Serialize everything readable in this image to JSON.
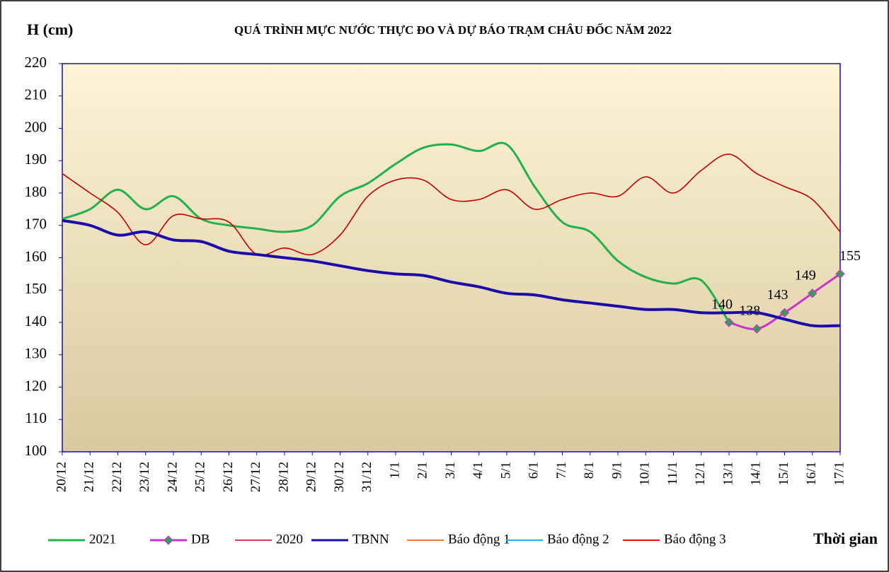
{
  "chart_data": {
    "type": "line",
    "title": "QUÁ TRÌNH MỰC NƯỚC THỰC ĐO VÀ DỰ BÁO TRẠM CHÂU ĐỐC NĂM 2022",
    "y_label": "H (cm)",
    "x_label": "Thời gian",
    "categories": [
      "20/12",
      "21/12",
      "22/12",
      "23/12",
      "24/12",
      "25/12",
      "26/12",
      "27/12",
      "28/12",
      "29/12",
      "30/12",
      "31/12",
      "1/1",
      "2/1",
      "3/1",
      "4/1",
      "5/1",
      "6/1",
      "7/1",
      "8/1",
      "9/1",
      "10/1",
      "11/1",
      "12/1",
      "13/1",
      "14/1",
      "15/1",
      "16/1",
      "17/1"
    ],
    "ylim": [
      100,
      220
    ],
    "yticks": [
      100,
      110,
      120,
      130,
      140,
      150,
      160,
      170,
      180,
      190,
      200,
      210,
      220
    ],
    "series": [
      {
        "name": "2021",
        "color": "#22b14c",
        "width": 3,
        "values": [
          172,
          175,
          181,
          175,
          179,
          172,
          170,
          169,
          168,
          170,
          179,
          183,
          189,
          194,
          195,
          193,
          195,
          182,
          171,
          168,
          159,
          154,
          152,
          153,
          140,
          null,
          null,
          null,
          null
        ]
      },
      {
        "name": "DB",
        "color": "#cc33cc",
        "marker_color": "#3a9a5a",
        "width": 3,
        "data_labels": true,
        "values": [
          null,
          null,
          null,
          null,
          null,
          null,
          null,
          null,
          null,
          null,
          null,
          null,
          null,
          null,
          null,
          null,
          null,
          null,
          null,
          null,
          null,
          null,
          null,
          null,
          140,
          138,
          143,
          149,
          155
        ]
      },
      {
        "name": "2020",
        "color": "#c00000",
        "width": 1.6,
        "values": [
          186,
          180,
          174,
          164,
          173,
          172,
          171,
          161,
          163,
          161,
          167,
          179,
          184,
          184,
          178,
          178,
          181,
          175,
          178,
          180,
          179,
          185,
          180,
          187,
          192,
          186,
          182,
          178,
          168
        ]
      },
      {
        "name": "TBNN",
        "color": "#1a0ca8",
        "width": 4,
        "values": [
          171.5,
          170,
          167,
          168,
          165.5,
          165,
          162,
          161,
          160,
          159,
          157.5,
          156,
          155,
          154.5,
          152.5,
          151,
          149,
          148.5,
          147,
          146,
          145,
          144,
          144,
          143,
          143,
          143,
          141,
          139,
          139
        ]
      },
      {
        "name": "Báo động 1",
        "color": "#f08030",
        "width": 2,
        "values": [
          null,
          null,
          null,
          null,
          null,
          null,
          null,
          null,
          null,
          null,
          null,
          null,
          null,
          null,
          null,
          null,
          null,
          null,
          null,
          null,
          null,
          null,
          null,
          null,
          null,
          null,
          null,
          null,
          null
        ]
      },
      {
        "name": "Báo động 2",
        "color": "#20b0f0",
        "width": 2,
        "values": [
          null,
          null,
          null,
          null,
          null,
          null,
          null,
          null,
          null,
          null,
          null,
          null,
          null,
          null,
          null,
          null,
          null,
          null,
          null,
          null,
          null,
          null,
          null,
          null,
          null,
          null,
          null,
          null,
          null
        ]
      },
      {
        "name": "Báo động 3",
        "color": "#e01010",
        "width": 2,
        "values": [
          null,
          null,
          null,
          null,
          null,
          null,
          null,
          null,
          null,
          null,
          null,
          null,
          null,
          null,
          null,
          null,
          null,
          null,
          null,
          null,
          null,
          null,
          null,
          null,
          null,
          null,
          null,
          null,
          null
        ]
      }
    ]
  }
}
